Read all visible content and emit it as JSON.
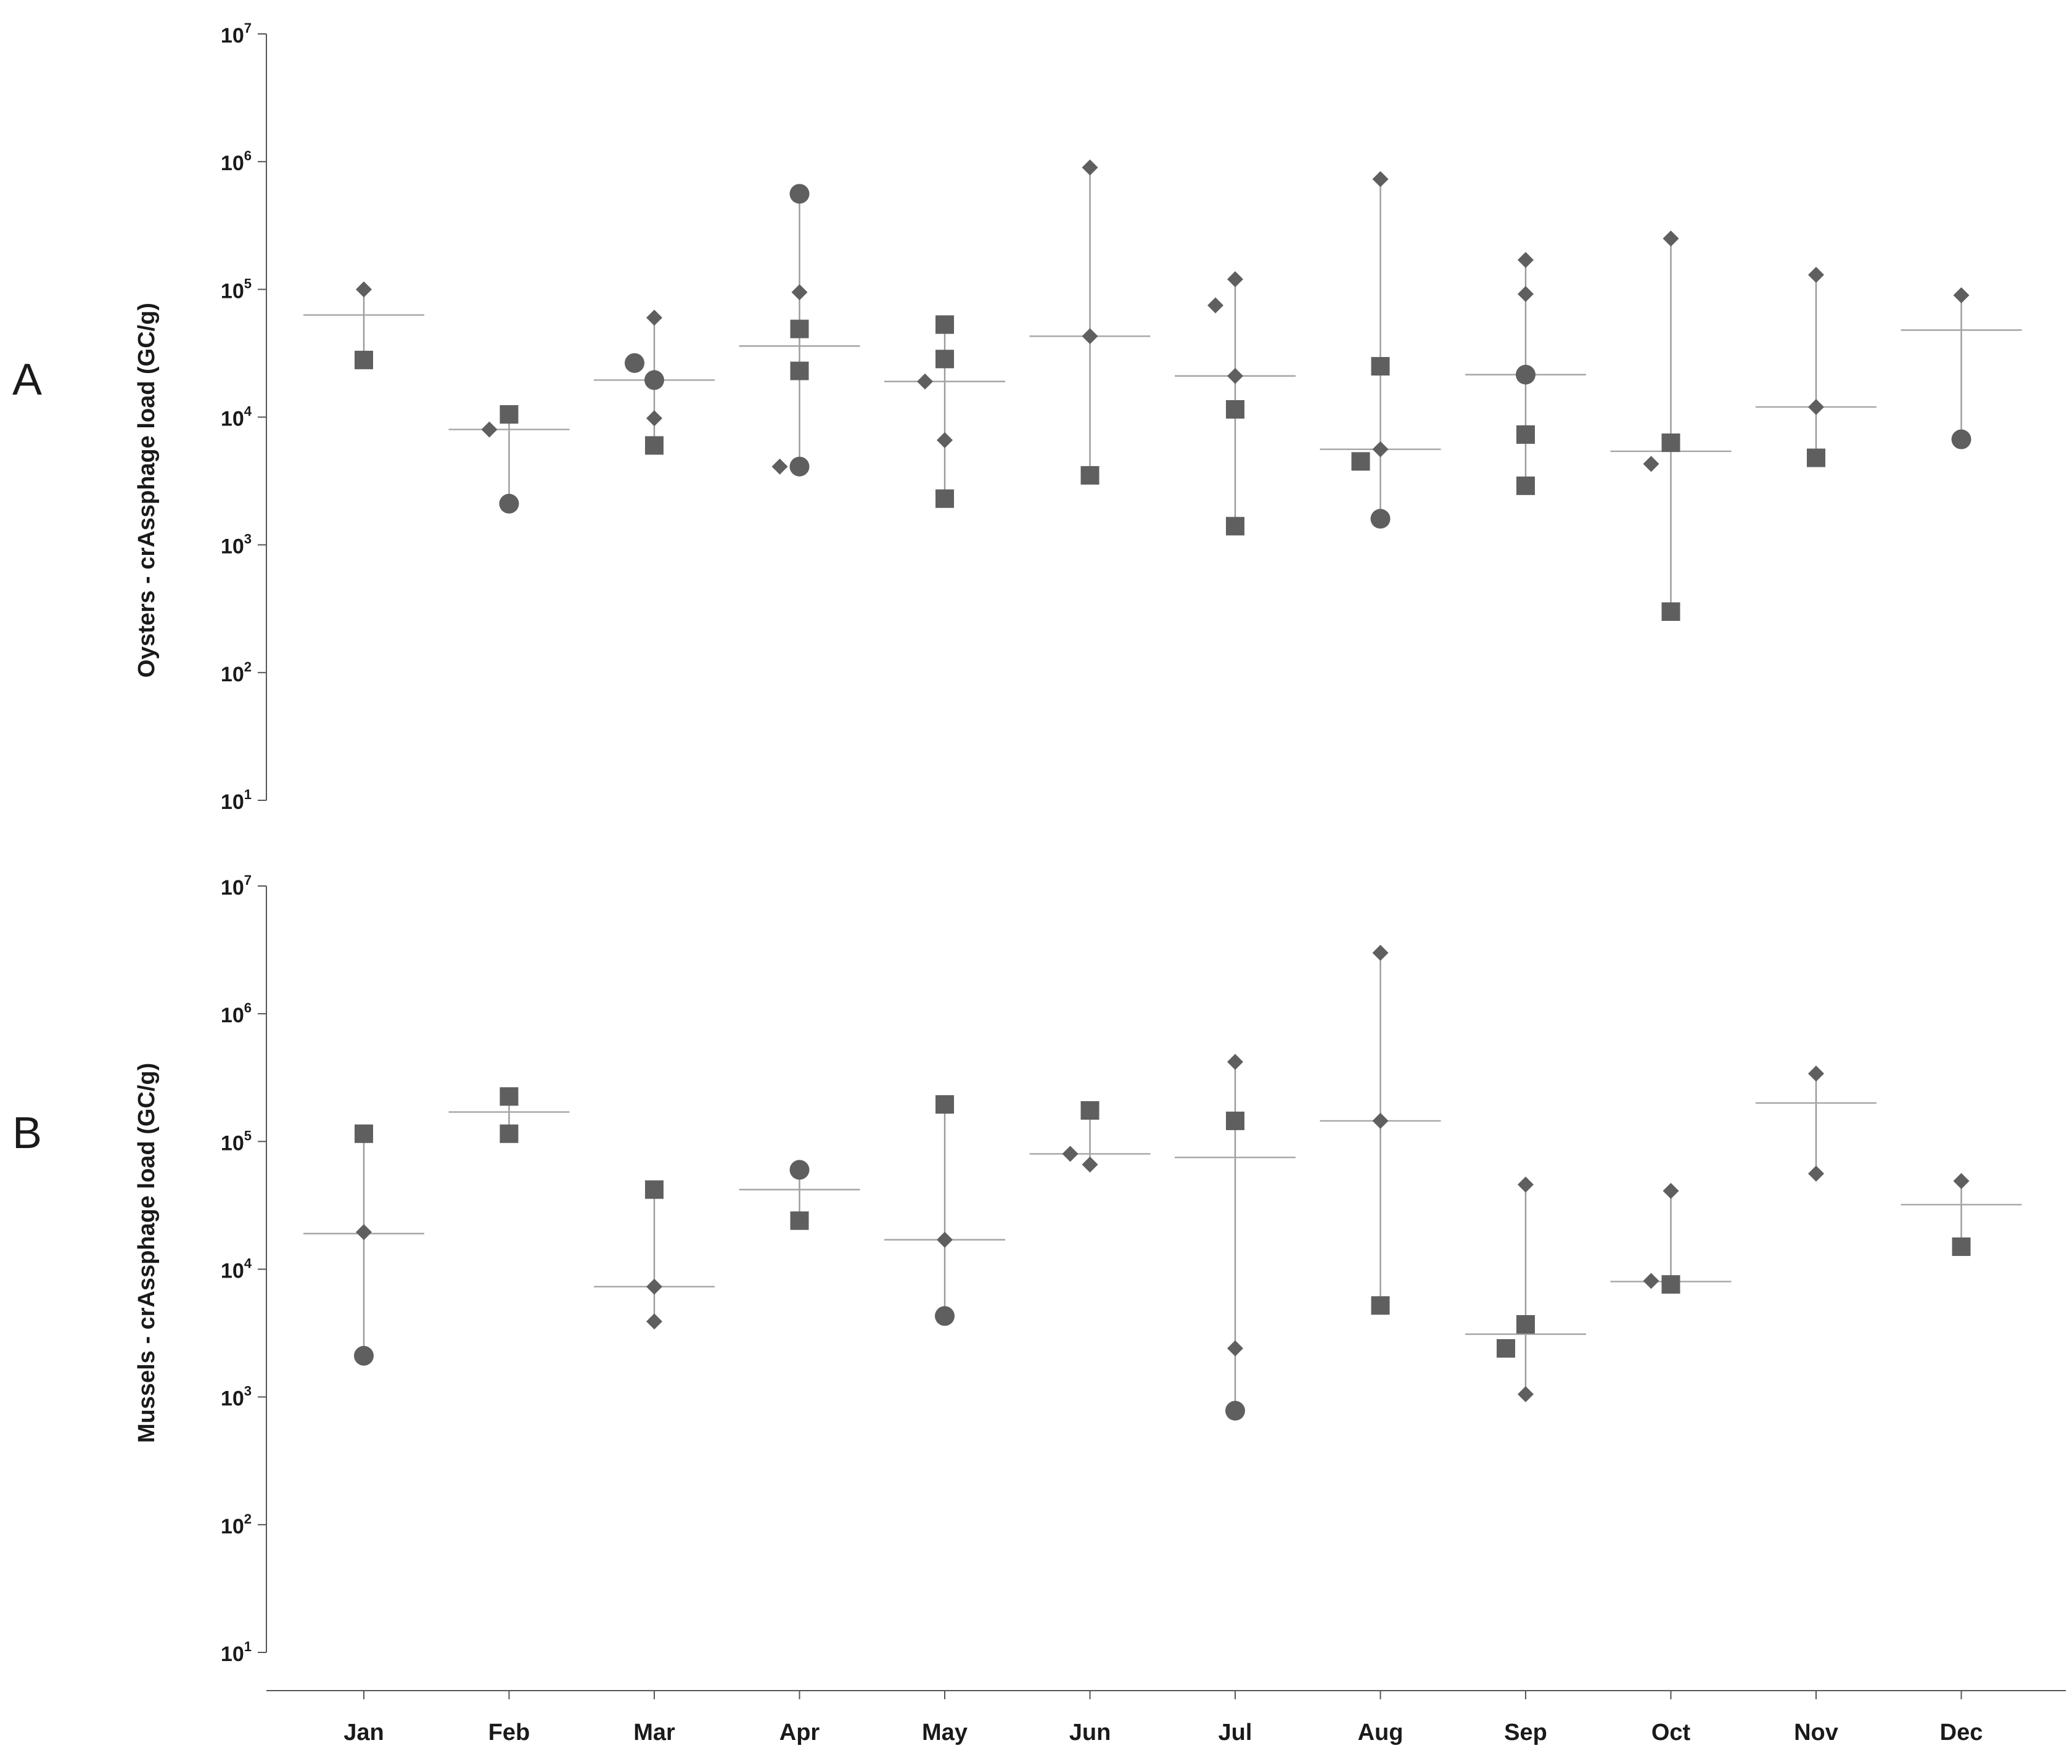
{
  "colors": {
    "marker": "#5f5f5f",
    "line": "#a0a0a0",
    "axis": "#555555",
    "text": "#1a1a1a"
  },
  "chart_data": [
    {
      "type": "scatter",
      "panel_label": "A",
      "ylabel": "Oysters -  crAssphage load (GC/g)",
      "yscale": "log",
      "ylim": [
        10,
        10000000
      ],
      "yticks": [
        {
          "base": "10",
          "exp": "1"
        },
        {
          "base": "10",
          "exp": "2"
        },
        {
          "base": "10",
          "exp": "3"
        },
        {
          "base": "10",
          "exp": "4"
        },
        {
          "base": "10",
          "exp": "5"
        },
        {
          "base": "10",
          "exp": "6"
        },
        {
          "base": "10",
          "exp": "7"
        }
      ],
      "categories": [
        "Jan",
        "Feb",
        "Mar",
        "Apr",
        "May",
        "Jun",
        "Jul",
        "Aug",
        "Sep",
        "Oct",
        "Nov",
        "Dec"
      ],
      "months": [
        {
          "median": 63000,
          "range": [
            28000,
            100000
          ],
          "points": [
            {
              "shape": "diamond",
              "y": 100000
            },
            {
              "shape": "square",
              "y": 28000
            }
          ]
        },
        {
          "median": 8000,
          "range": [
            2100,
            10500
          ],
          "points": [
            {
              "shape": "square",
              "y": 10500
            },
            {
              "shape": "diamond",
              "y": 8000
            },
            {
              "shape": "circle",
              "y": 2100
            }
          ]
        },
        {
          "median": 19500,
          "range": [
            6000,
            60000
          ],
          "points": [
            {
              "shape": "diamond",
              "y": 60000
            },
            {
              "shape": "circle",
              "y": 19500
            },
            {
              "shape": "circle",
              "y": 26500
            },
            {
              "shape": "diamond",
              "y": 9800
            },
            {
              "shape": "square",
              "y": 6000
            }
          ]
        },
        {
          "median": 36000,
          "range": [
            4100,
            560000
          ],
          "points": [
            {
              "shape": "circle",
              "y": 560000
            },
            {
              "shape": "diamond",
              "y": 95000
            },
            {
              "shape": "square",
              "y": 49000
            },
            {
              "shape": "square",
              "y": 23000
            },
            {
              "shape": "circle",
              "y": 4100
            },
            {
              "shape": "diamond",
              "y": 4100
            }
          ]
        },
        {
          "median": 19000,
          "range": [
            2300,
            53000
          ],
          "points": [
            {
              "shape": "square",
              "y": 53000
            },
            {
              "shape": "square",
              "y": 28500
            },
            {
              "shape": "diamond",
              "y": 19000
            },
            {
              "shape": "diamond",
              "y": 6600
            },
            {
              "shape": "square",
              "y": 2300
            }
          ]
        },
        {
          "median": 43000,
          "range": [
            3500,
            900000
          ],
          "points": [
            {
              "shape": "diamond",
              "y": 900000
            },
            {
              "shape": "diamond",
              "y": 43000
            },
            {
              "shape": "square",
              "y": 3500
            }
          ]
        },
        {
          "median": 21000,
          "range": [
            1400,
            120000
          ],
          "points": [
            {
              "shape": "diamond",
              "y": 120000
            },
            {
              "shape": "diamond",
              "y": 75000
            },
            {
              "shape": "diamond",
              "y": 21000
            },
            {
              "shape": "square",
              "y": 11500
            },
            {
              "shape": "square",
              "y": 1400
            }
          ]
        },
        {
          "median": 5600,
          "range": [
            1600,
            730000
          ],
          "points": [
            {
              "shape": "diamond",
              "y": 730000
            },
            {
              "shape": "square",
              "y": 25000
            },
            {
              "shape": "diamond",
              "y": 5600
            },
            {
              "shape": "square",
              "y": 4500
            },
            {
              "shape": "circle",
              "y": 1600
            }
          ]
        },
        {
          "median": 21500,
          "range": [
            2900,
            170000
          ],
          "points": [
            {
              "shape": "diamond",
              "y": 170000
            },
            {
              "shape": "diamond",
              "y": 92000
            },
            {
              "shape": "circle",
              "y": 21500
            },
            {
              "shape": "square",
              "y": 7300
            },
            {
              "shape": "square",
              "y": 2900
            }
          ]
        },
        {
          "median": 5400,
          "range": [
            300,
            250000
          ],
          "points": [
            {
              "shape": "diamond",
              "y": 250000
            },
            {
              "shape": "square",
              "y": 6300
            },
            {
              "shape": "diamond",
              "y": 4300
            },
            {
              "shape": "square",
              "y": 300
            }
          ]
        },
        {
          "median": 12000,
          "range": [
            4800,
            130000
          ],
          "points": [
            {
              "shape": "diamond",
              "y": 130000
            },
            {
              "shape": "diamond",
              "y": 12000
            },
            {
              "shape": "square",
              "y": 4800
            }
          ]
        },
        {
          "median": 48000,
          "range": [
            6700,
            90000
          ],
          "points": [
            {
              "shape": "diamond",
              "y": 90000
            },
            {
              "shape": "circle",
              "y": 6700
            }
          ]
        }
      ]
    },
    {
      "type": "scatter",
      "panel_label": "B",
      "ylabel": "Mussels - crAssphage load (GC/g)",
      "yscale": "log",
      "ylim": [
        10,
        10000000
      ],
      "yticks": [
        {
          "base": "10",
          "exp": "1"
        },
        {
          "base": "10",
          "exp": "2"
        },
        {
          "base": "10",
          "exp": "3"
        },
        {
          "base": "10",
          "exp": "4"
        },
        {
          "base": "10",
          "exp": "5"
        },
        {
          "base": "10",
          "exp": "6"
        },
        {
          "base": "10",
          "exp": "7"
        }
      ],
      "categories": [
        "Jan",
        "Feb",
        "Mar",
        "Apr",
        "May",
        "Jun",
        "Jul",
        "Aug",
        "Sep",
        "Oct",
        "Nov",
        "Dec"
      ],
      "months": [
        {
          "median": 19000,
          "range": [
            2100,
            115000
          ],
          "points": [
            {
              "shape": "square",
              "y": 115000
            },
            {
              "shape": "diamond",
              "y": 19500
            },
            {
              "shape": "circle",
              "y": 2100
            }
          ]
        },
        {
          "median": 170000,
          "range": [
            115000,
            225000
          ],
          "points": [
            {
              "shape": "square",
              "y": 225000
            },
            {
              "shape": "square",
              "y": 115000
            }
          ]
        },
        {
          "median": 7300,
          "range": [
            3900,
            42000
          ],
          "points": [
            {
              "shape": "square",
              "y": 42000
            },
            {
              "shape": "diamond",
              "y": 7300
            },
            {
              "shape": "diamond",
              "y": 3900
            }
          ]
        },
        {
          "median": 42000,
          "range": [
            24000,
            60000
          ],
          "points": [
            {
              "shape": "circle",
              "y": 60000
            },
            {
              "shape": "square",
              "y": 24000
            }
          ]
        },
        {
          "median": 17000,
          "range": [
            4300,
            195000
          ],
          "points": [
            {
              "shape": "square",
              "y": 195000
            },
            {
              "shape": "diamond",
              "y": 17000
            },
            {
              "shape": "circle",
              "y": 4300
            }
          ]
        },
        {
          "median": 80000,
          "range": [
            66000,
            175000
          ],
          "points": [
            {
              "shape": "square",
              "y": 175000
            },
            {
              "shape": "diamond",
              "y": 66000
            },
            {
              "shape": "diamond",
              "y": 80000
            }
          ]
        },
        {
          "median": 75000,
          "range": [
            780,
            420000
          ],
          "points": [
            {
              "shape": "diamond",
              "y": 420000
            },
            {
              "shape": "square",
              "y": 145000
            },
            {
              "shape": "diamond",
              "y": 2400
            },
            {
              "shape": "circle",
              "y": 780
            }
          ]
        },
        {
          "median": 145000,
          "range": [
            5200,
            3000000
          ],
          "points": [
            {
              "shape": "diamond",
              "y": 3000000
            },
            {
              "shape": "diamond",
              "y": 145000
            },
            {
              "shape": "square",
              "y": 5200
            }
          ]
        },
        {
          "median": 3100,
          "range": [
            1050,
            46000
          ],
          "points": [
            {
              "shape": "diamond",
              "y": 46000
            },
            {
              "shape": "square",
              "y": 3700
            },
            {
              "shape": "square",
              "y": 2400
            },
            {
              "shape": "diamond",
              "y": 1050
            }
          ]
        },
        {
          "median": 8000,
          "range": [
            7600,
            41000
          ],
          "points": [
            {
              "shape": "diamond",
              "y": 41000
            },
            {
              "shape": "square",
              "y": 7600
            },
            {
              "shape": "diamond",
              "y": 8100
            }
          ]
        },
        {
          "median": 200000,
          "range": [
            56000,
            340000
          ],
          "points": [
            {
              "shape": "diamond",
              "y": 340000
            },
            {
              "shape": "diamond",
              "y": 56000
            }
          ]
        },
        {
          "median": 32000,
          "range": [
            15000,
            49000
          ],
          "points": [
            {
              "shape": "diamond",
              "y": 49000
            },
            {
              "shape": "square",
              "y": 15000
            }
          ]
        }
      ]
    }
  ]
}
